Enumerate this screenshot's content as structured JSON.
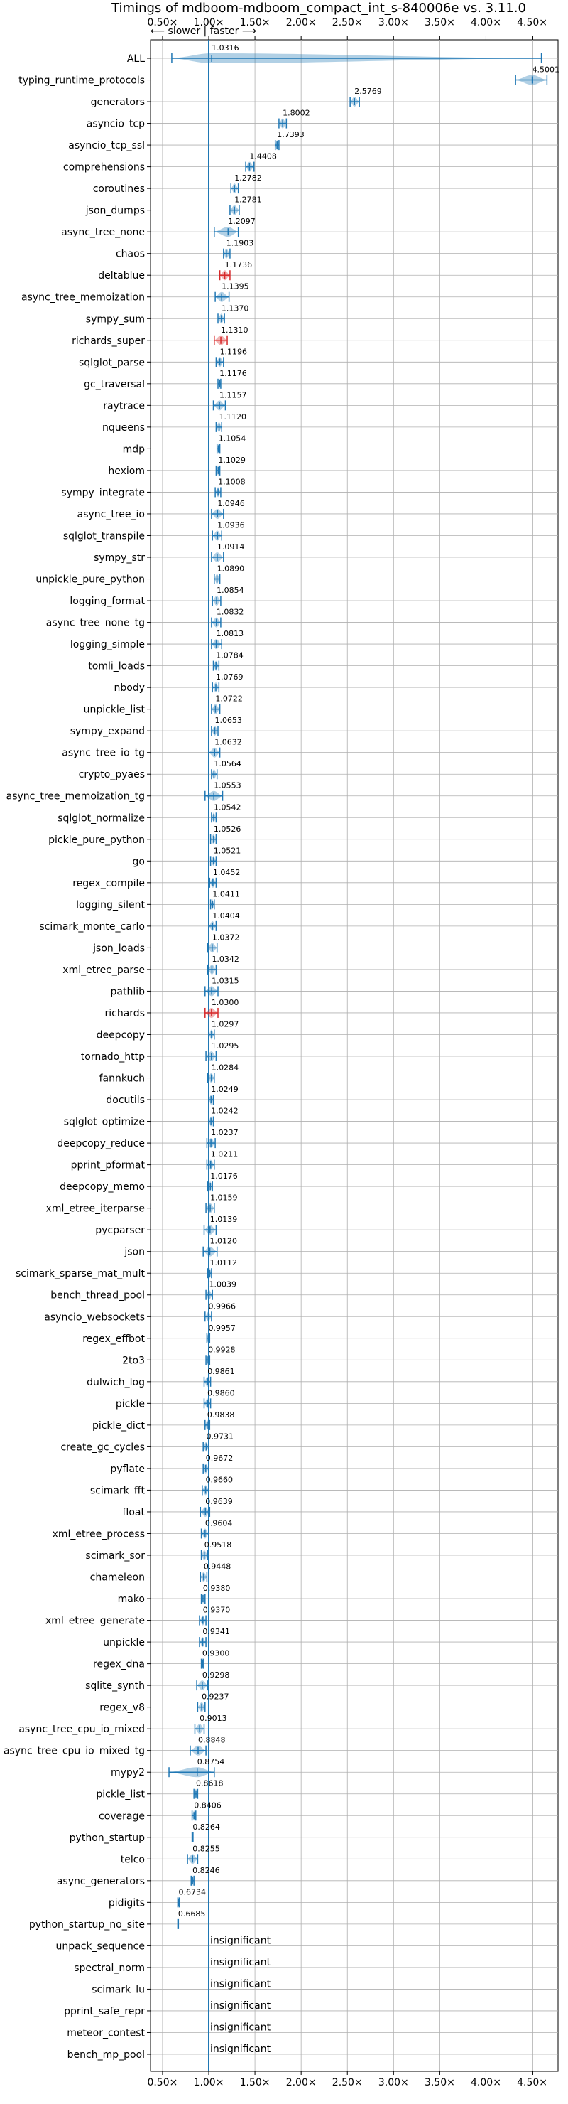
{
  "chart_data": {
    "type": "violin",
    "title": "Timings of mdboom-mdboom_compact_int_s-840006e vs. 3.11.0",
    "direction_label": "⟵ slower | faster ⟶",
    "xlim": [
      0.37,
      4.78
    ],
    "xticks": [
      0.5,
      1.0,
      1.5,
      2.0,
      2.5,
      3.0,
      3.5,
      4.0,
      4.5
    ],
    "xtick_labels": [
      "0.50×",
      "1.00×",
      "1.50×",
      "2.00×",
      "2.50×",
      "3.00×",
      "3.50×",
      "4.00×",
      "4.50×"
    ],
    "reference_x": 1.0,
    "grid": true,
    "colors": {
      "violin": "#1f77b4",
      "highlight": "#d62728",
      "reference_line": "#1f77b4",
      "grid": "#b0b0b0"
    },
    "insignificant_text": "insignificant",
    "benchmarks": [
      {
        "name": "ALL",
        "value": 1.0316,
        "label": "1.0316",
        "min": 0.6,
        "max": 4.6
      },
      {
        "name": "typing_runtime_protocols",
        "value": 4.5001,
        "label": "4.5001",
        "min": 4.32,
        "max": 4.66
      },
      {
        "name": "generators",
        "value": 2.5769,
        "label": "2.5769",
        "min": 2.53,
        "max": 2.63
      },
      {
        "name": "asyncio_tcp",
        "value": 1.8002,
        "label": "1.8002",
        "min": 1.76,
        "max": 1.84
      },
      {
        "name": "asyncio_tcp_ssl",
        "value": 1.7393,
        "label": "1.7393",
        "min": 1.72,
        "max": 1.76
      },
      {
        "name": "comprehensions",
        "value": 1.4408,
        "label": "1.4408",
        "min": 1.4,
        "max": 1.49
      },
      {
        "name": "coroutines",
        "value": 1.2782,
        "label": "1.2782",
        "min": 1.24,
        "max": 1.32
      },
      {
        "name": "json_dumps",
        "value": 1.2781,
        "label": "1.2781",
        "min": 1.23,
        "max": 1.33
      },
      {
        "name": "async_tree_none",
        "value": 1.2097,
        "label": "1.2097",
        "min": 1.06,
        "max": 1.32
      },
      {
        "name": "chaos",
        "value": 1.1903,
        "label": "1.1903",
        "min": 1.16,
        "max": 1.23
      },
      {
        "name": "deltablue",
        "value": 1.1736,
        "label": "1.1736",
        "min": 1.12,
        "max": 1.23,
        "highlight": true
      },
      {
        "name": "async_tree_memoization",
        "value": 1.1395,
        "label": "1.1395",
        "min": 1.07,
        "max": 1.22
      },
      {
        "name": "sympy_sum",
        "value": 1.137,
        "label": "1.1370",
        "min": 1.1,
        "max": 1.17
      },
      {
        "name": "richards_super",
        "value": 1.131,
        "label": "1.1310",
        "min": 1.06,
        "max": 1.2,
        "highlight": true
      },
      {
        "name": "sqlglot_parse",
        "value": 1.1196,
        "label": "1.1196",
        "min": 1.08,
        "max": 1.16
      },
      {
        "name": "gc_traversal",
        "value": 1.1176,
        "label": "1.1176",
        "min": 1.1,
        "max": 1.13
      },
      {
        "name": "raytrace",
        "value": 1.1157,
        "label": "1.1157",
        "min": 1.05,
        "max": 1.18
      },
      {
        "name": "nqueens",
        "value": 1.112,
        "label": "1.1120",
        "min": 1.08,
        "max": 1.14
      },
      {
        "name": "mdp",
        "value": 1.1054,
        "label": "1.1054",
        "min": 1.09,
        "max": 1.12
      },
      {
        "name": "hexiom",
        "value": 1.1029,
        "label": "1.1029",
        "min": 1.08,
        "max": 1.12
      },
      {
        "name": "sympy_integrate",
        "value": 1.1008,
        "label": "1.1008",
        "min": 1.07,
        "max": 1.13
      },
      {
        "name": "async_tree_io",
        "value": 1.0946,
        "label": "1.0946",
        "min": 1.03,
        "max": 1.16
      },
      {
        "name": "sqlglot_transpile",
        "value": 1.0936,
        "label": "1.0936",
        "min": 1.04,
        "max": 1.14
      },
      {
        "name": "sympy_str",
        "value": 1.0914,
        "label": "1.0914",
        "min": 1.03,
        "max": 1.16
      },
      {
        "name": "unpickle_pure_python",
        "value": 1.089,
        "label": "1.0890",
        "min": 1.06,
        "max": 1.12
      },
      {
        "name": "logging_format",
        "value": 1.0854,
        "label": "1.0854",
        "min": 1.04,
        "max": 1.13
      },
      {
        "name": "async_tree_none_tg",
        "value": 1.0832,
        "label": "1.0832",
        "min": 1.03,
        "max": 1.13
      },
      {
        "name": "logging_simple",
        "value": 1.0813,
        "label": "1.0813",
        "min": 1.03,
        "max": 1.14
      },
      {
        "name": "tomli_loads",
        "value": 1.0784,
        "label": "1.0784",
        "min": 1.05,
        "max": 1.11
      },
      {
        "name": "nbody",
        "value": 1.0769,
        "label": "1.0769",
        "min": 1.04,
        "max": 1.11
      },
      {
        "name": "unpickle_list",
        "value": 1.0722,
        "label": "1.0722",
        "min": 1.03,
        "max": 1.12
      },
      {
        "name": "sympy_expand",
        "value": 1.0653,
        "label": "1.0653",
        "min": 1.03,
        "max": 1.1
      },
      {
        "name": "async_tree_io_tg",
        "value": 1.0632,
        "label": "1.0632",
        "min": 1.0,
        "max": 1.12
      },
      {
        "name": "crypto_pyaes",
        "value": 1.0564,
        "label": "1.0564",
        "min": 1.03,
        "max": 1.09
      },
      {
        "name": "async_tree_memoization_tg",
        "value": 1.0553,
        "label": "1.0553",
        "min": 0.96,
        "max": 1.15
      },
      {
        "name": "sqlglot_normalize",
        "value": 1.0542,
        "label": "1.0542",
        "min": 1.03,
        "max": 1.08
      },
      {
        "name": "pickle_pure_python",
        "value": 1.0526,
        "label": "1.0526",
        "min": 1.02,
        "max": 1.08
      },
      {
        "name": "go",
        "value": 1.0521,
        "label": "1.0521",
        "min": 1.02,
        "max": 1.08
      },
      {
        "name": "regex_compile",
        "value": 1.0452,
        "label": "1.0452",
        "min": 1.01,
        "max": 1.08
      },
      {
        "name": "logging_silent",
        "value": 1.0411,
        "label": "1.0411",
        "min": 1.02,
        "max": 1.06
      },
      {
        "name": "scimark_monte_carlo",
        "value": 1.0404,
        "label": "1.0404",
        "min": 1.0,
        "max": 1.08
      },
      {
        "name": "json_loads",
        "value": 1.0372,
        "label": "1.0372",
        "min": 0.99,
        "max": 1.09
      },
      {
        "name": "xml_etree_parse",
        "value": 1.0342,
        "label": "1.0342",
        "min": 0.99,
        "max": 1.08
      },
      {
        "name": "pathlib",
        "value": 1.0315,
        "label": "1.0315",
        "min": 0.96,
        "max": 1.1
      },
      {
        "name": "richards",
        "value": 1.03,
        "label": "1.0300",
        "min": 0.96,
        "max": 1.1,
        "highlight": true
      },
      {
        "name": "deepcopy",
        "value": 1.0297,
        "label": "1.0297",
        "min": 1.0,
        "max": 1.06
      },
      {
        "name": "tornado_http",
        "value": 1.0295,
        "label": "1.0295",
        "min": 0.97,
        "max": 1.08
      },
      {
        "name": "fannkuch",
        "value": 1.0284,
        "label": "1.0284",
        "min": 0.99,
        "max": 1.06
      },
      {
        "name": "docutils",
        "value": 1.0249,
        "label": "1.0249",
        "min": 1.0,
        "max": 1.05
      },
      {
        "name": "sqlglot_optimize",
        "value": 1.0242,
        "label": "1.0242",
        "min": 1.0,
        "max": 1.05
      },
      {
        "name": "deepcopy_reduce",
        "value": 1.0237,
        "label": "1.0237",
        "min": 0.98,
        "max": 1.07
      },
      {
        "name": "pprint_pformat",
        "value": 1.0211,
        "label": "1.0211",
        "min": 0.98,
        "max": 1.06
      },
      {
        "name": "deepcopy_memo",
        "value": 1.0176,
        "label": "1.0176",
        "min": 0.99,
        "max": 1.04
      },
      {
        "name": "xml_etree_iterparse",
        "value": 1.0159,
        "label": "1.0159",
        "min": 0.97,
        "max": 1.06
      },
      {
        "name": "pycparser",
        "value": 1.0139,
        "label": "1.0139",
        "min": 0.95,
        "max": 1.08
      },
      {
        "name": "json",
        "value": 1.012,
        "label": "1.0120",
        "min": 0.94,
        "max": 1.09
      },
      {
        "name": "scimark_sparse_mat_mult",
        "value": 1.0112,
        "label": "1.0112",
        "min": 0.99,
        "max": 1.03
      },
      {
        "name": "bench_thread_pool",
        "value": 1.0039,
        "label": "1.0039",
        "min": 0.97,
        "max": 1.04
      },
      {
        "name": "asyncio_websockets",
        "value": 0.9966,
        "label": "0.9966",
        "min": 0.96,
        "max": 1.03
      },
      {
        "name": "regex_effbot",
        "value": 0.9957,
        "label": "0.9957",
        "min": 0.98,
        "max": 1.01
      },
      {
        "name": "2to3",
        "value": 0.9928,
        "label": "0.9928",
        "min": 0.97,
        "max": 1.01
      },
      {
        "name": "dulwich_log",
        "value": 0.9861,
        "label": "0.9861",
        "min": 0.95,
        "max": 1.02
      },
      {
        "name": "pickle",
        "value": 0.986,
        "label": "0.9860",
        "min": 0.95,
        "max": 1.02
      },
      {
        "name": "pickle_dict",
        "value": 0.9838,
        "label": "0.9838",
        "min": 0.96,
        "max": 1.01
      },
      {
        "name": "create_gc_cycles",
        "value": 0.9731,
        "label": "0.9731",
        "min": 0.94,
        "max": 1.0
      },
      {
        "name": "pyflate",
        "value": 0.9672,
        "label": "0.9672",
        "min": 0.94,
        "max": 1.0
      },
      {
        "name": "scimark_fft",
        "value": 0.966,
        "label": "0.9660",
        "min": 0.93,
        "max": 1.0
      },
      {
        "name": "float",
        "value": 0.9639,
        "label": "0.9639",
        "min": 0.91,
        "max": 1.01
      },
      {
        "name": "xml_etree_process",
        "value": 0.9604,
        "label": "0.9604",
        "min": 0.92,
        "max": 1.0
      },
      {
        "name": "scimark_sor",
        "value": 0.9518,
        "label": "0.9518",
        "min": 0.92,
        "max": 0.99
      },
      {
        "name": "chameleon",
        "value": 0.9448,
        "label": "0.9448",
        "min": 0.91,
        "max": 0.98
      },
      {
        "name": "mako",
        "value": 0.938,
        "label": "0.9380",
        "min": 0.92,
        "max": 0.96
      },
      {
        "name": "xml_etree_generate",
        "value": 0.937,
        "label": "0.9370",
        "min": 0.9,
        "max": 0.97
      },
      {
        "name": "unpickle",
        "value": 0.9341,
        "label": "0.9341",
        "min": 0.9,
        "max": 0.97
      },
      {
        "name": "regex_dna",
        "value": 0.93,
        "label": "0.9300",
        "min": 0.92,
        "max": 0.94
      },
      {
        "name": "sqlite_synth",
        "value": 0.9298,
        "label": "0.9298",
        "min": 0.87,
        "max": 0.99
      },
      {
        "name": "regex_v8",
        "value": 0.9237,
        "label": "0.9237",
        "min": 0.88,
        "max": 0.96
      },
      {
        "name": "async_tree_cpu_io_mixed",
        "value": 0.9013,
        "label": "0.9013",
        "min": 0.85,
        "max": 0.95
      },
      {
        "name": "async_tree_cpu_io_mixed_tg",
        "value": 0.8848,
        "label": "0.8848",
        "min": 0.8,
        "max": 0.97
      },
      {
        "name": "mypy2",
        "value": 0.8754,
        "label": "0.8754",
        "min": 0.57,
        "max": 1.06
      },
      {
        "name": "pickle_list",
        "value": 0.8618,
        "label": "0.8618",
        "min": 0.84,
        "max": 0.88
      },
      {
        "name": "coverage",
        "value": 0.8406,
        "label": "0.8406",
        "min": 0.82,
        "max": 0.86
      },
      {
        "name": "python_startup",
        "value": 0.8264,
        "label": "0.8264",
        "min": 0.82,
        "max": 0.83
      },
      {
        "name": "telco",
        "value": 0.8255,
        "label": "0.8255",
        "min": 0.77,
        "max": 0.88
      },
      {
        "name": "async_generators",
        "value": 0.8246,
        "label": "0.8246",
        "min": 0.81,
        "max": 0.84
      },
      {
        "name": "pidigits",
        "value": 0.6734,
        "label": "0.6734",
        "min": 0.665,
        "max": 0.68
      },
      {
        "name": "python_startup_no_site",
        "value": 0.6685,
        "label": "0.6685",
        "min": 0.665,
        "max": 0.672
      },
      {
        "name": "unpack_sequence",
        "insignificant": true
      },
      {
        "name": "spectral_norm",
        "insignificant": true
      },
      {
        "name": "scimark_lu",
        "insignificant": true
      },
      {
        "name": "pprint_safe_repr",
        "insignificant": true
      },
      {
        "name": "meteor_contest",
        "insignificant": true
      },
      {
        "name": "bench_mp_pool",
        "insignificant": true
      }
    ]
  }
}
